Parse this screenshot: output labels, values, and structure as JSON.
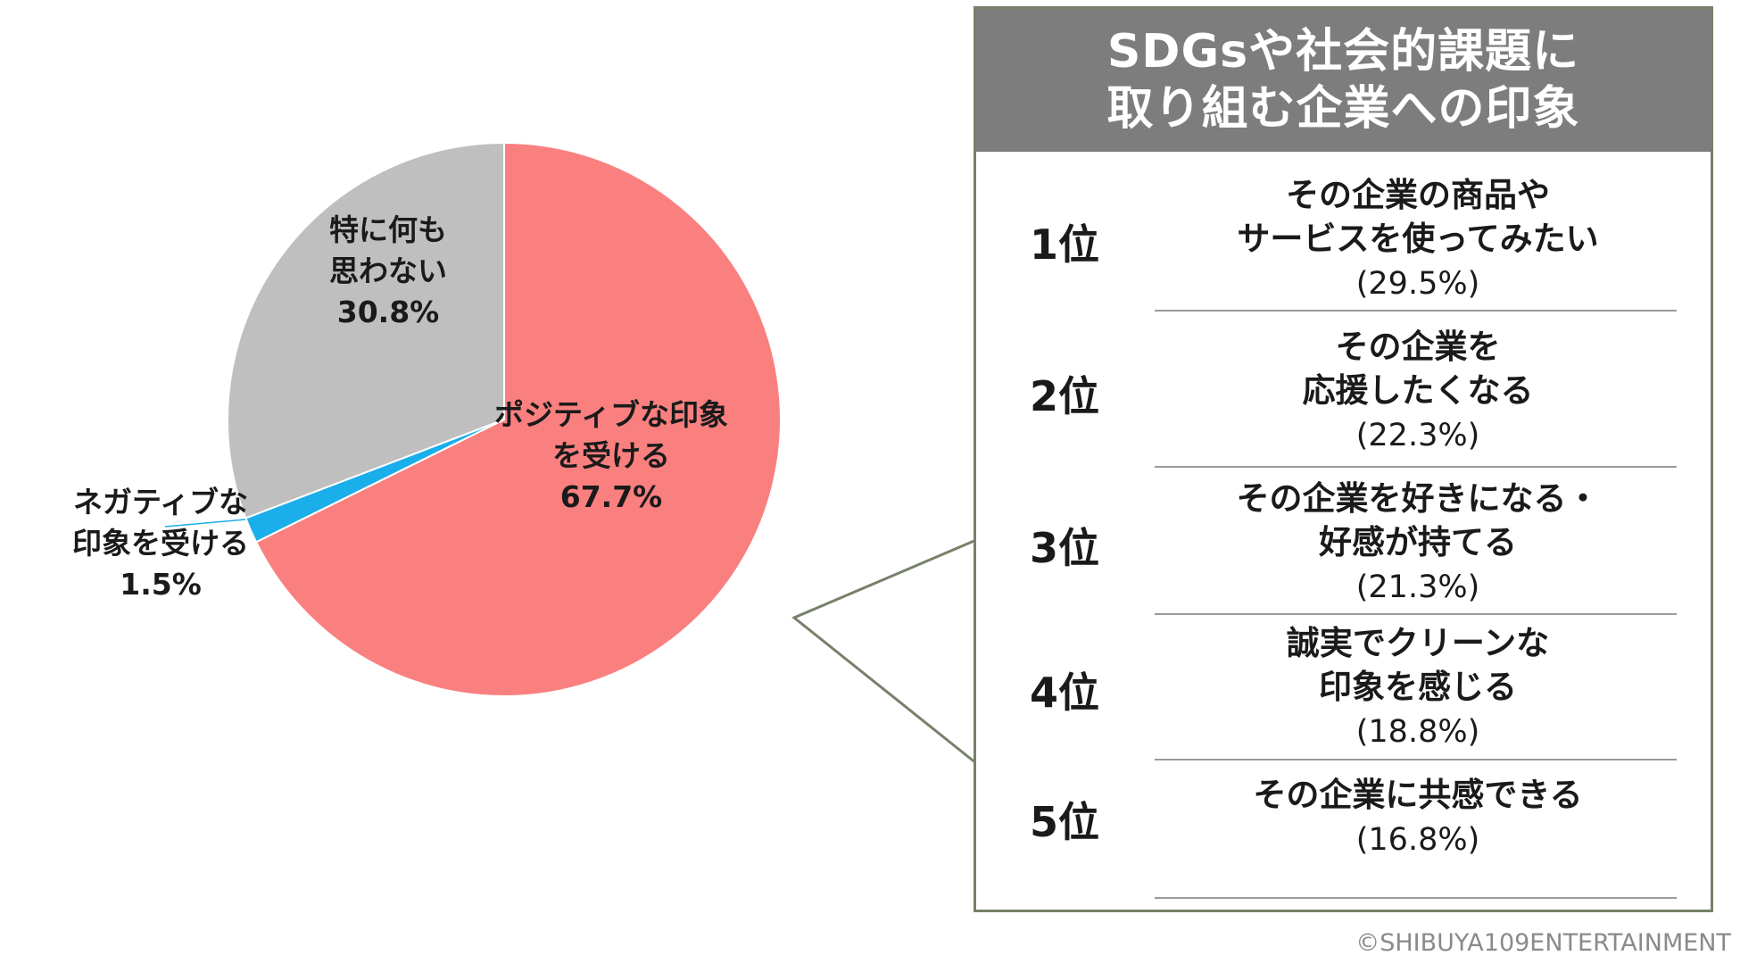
{
  "chart_data": {
    "type": "pie",
    "slices": [
      {
        "label": "ポジティブな印象\nを受ける",
        "value": 67.7,
        "value_label": "67.7%",
        "color": "#fa8080"
      },
      {
        "label": "ネガティブな\n印象を受ける",
        "value": 1.5,
        "value_label": "1.5%",
        "color": "#1aaeea"
      },
      {
        "label": "特に何も\n思わない",
        "value": 30.8,
        "value_label": "30.8%",
        "color": "#bfbfbf"
      }
    ]
  },
  "ranking": {
    "title": "SDGsや社会的課題に\n取り組む企業への印象",
    "header_color": "#7d7d7d",
    "border_color": "#77806a",
    "items": [
      {
        "rank": "1位",
        "text": "その企業の商品や\nサービスを使ってみたい",
        "pct": "(29.5%)"
      },
      {
        "rank": "2位",
        "text": "その企業を\n応援したくなる",
        "pct": "(22.3%)"
      },
      {
        "rank": "3位",
        "text": "その企業を好きになる・\n好感が持てる",
        "pct": "(21.3%)"
      },
      {
        "rank": "4位",
        "text": "誠実でクリーンな\n印象を感じる",
        "pct": "(18.8%)"
      },
      {
        "rank": "5位",
        "text": "その企業に共感できる",
        "pct": "(16.8%)"
      }
    ]
  },
  "copyright": "©SHIBUYA109ENTERTAINMENT"
}
